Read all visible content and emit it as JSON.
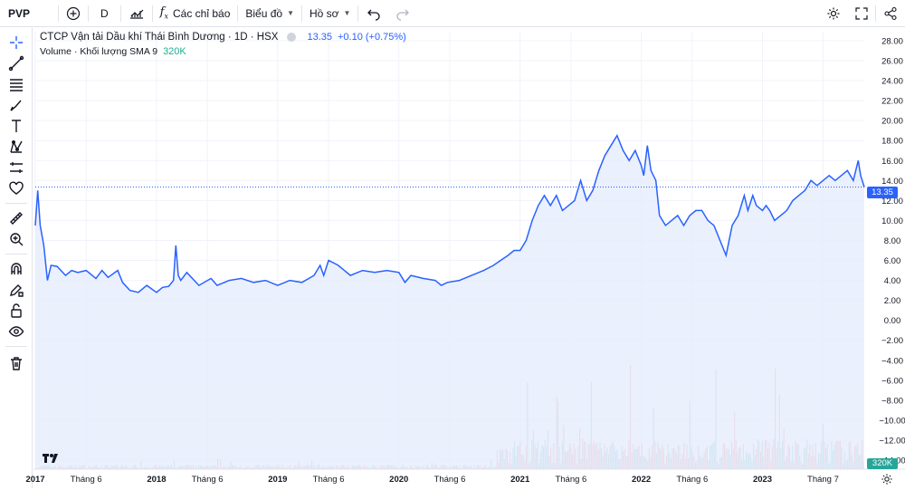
{
  "topbar": {
    "symbol": "PVP",
    "interval": "D",
    "indicators_label": "Các chỉ báo",
    "chart_label": "Biểu đồ",
    "profile_label": "Hồ sơ"
  },
  "legend": {
    "title": "CTCP Vận tải Dầu khí Thái Bình Dương · 1D · HSX",
    "price": "13.35",
    "change": "+0.10 (+0.75%)",
    "volume_label": "Volume · Khối lượng SMA 9",
    "volume_value": "320K"
  },
  "tags": {
    "last_price": "13.35",
    "last_volume": "320K"
  },
  "colors": {
    "line": "#2962ff",
    "area": "#e6ecfd",
    "vol_up": "#26a69a",
    "vol_down": "#ef5350",
    "grid": "#f0f3fa"
  },
  "chart_data": {
    "type": "area",
    "title": "CTCP Vận tải Dầu khí Thái Bình Dương · 1D · HSX",
    "xlabel": "",
    "ylabel": "",
    "ylim": [
      -14,
      28
    ],
    "y_ticks": [
      "28.00",
      "26.00",
      "24.00",
      "22.00",
      "20.00",
      "18.00",
      "16.00",
      "14.00",
      "12.00",
      "10.00",
      "8.00",
      "6.00",
      "4.00",
      "2.00",
      "0.00",
      "−2.00",
      "−4.00",
      "−6.00",
      "−8.00",
      "−10.00",
      "−12.00",
      "−14.00"
    ],
    "x_ticks": [
      "2017",
      "Tháng 6",
      "2018",
      "Tháng 6",
      "2019",
      "Tháng 6",
      "2020",
      "Tháng 6",
      "2021",
      "Tháng 6",
      "2022",
      "Tháng 6",
      "2023",
      "Tháng 7"
    ],
    "x_tick_dates": [
      2017.0,
      2017.42,
      2018.0,
      2018.42,
      2019.0,
      2019.42,
      2020.0,
      2020.42,
      2021.0,
      2021.42,
      2022.0,
      2022.42,
      2023.0,
      2023.5
    ],
    "xlim": [
      2017.0,
      2023.84
    ],
    "series": [
      {
        "values_x": [
          2017.0,
          2017.02,
          2017.04,
          2017.07,
          2017.1,
          2017.13,
          2017.18,
          2017.25,
          2017.3,
          2017.35,
          2017.42,
          2017.5,
          2017.55,
          2017.6,
          2017.68,
          2017.72,
          2017.78,
          2017.85,
          2017.92,
          2018.0,
          2018.05,
          2018.1,
          2018.14,
          2018.16,
          2018.18,
          2018.2,
          2018.25,
          2018.35,
          2018.45,
          2018.5,
          2018.6,
          2018.7,
          2018.8,
          2018.9,
          2019.0,
          2019.1,
          2019.2,
          2019.3,
          2019.35,
          2019.38,
          2019.42,
          2019.5,
          2019.6,
          2019.7,
          2019.8,
          2019.9,
          2020.0,
          2020.05,
          2020.1,
          2020.2,
          2020.3,
          2020.35,
          2020.4,
          2020.5,
          2020.6,
          2020.7,
          2020.78,
          2020.84,
          2020.9,
          2020.95,
          2021.0,
          2021.05,
          2021.1,
          2021.15,
          2021.2,
          2021.25,
          2021.3,
          2021.35,
          2021.4,
          2021.45,
          2021.5,
          2021.55,
          2021.6,
          2021.65,
          2021.7,
          2021.75,
          2021.8,
          2021.85,
          2021.9,
          2021.95,
          2022.0,
          2022.02,
          2022.05,
          2022.08,
          2022.12,
          2022.15,
          2022.2,
          2022.25,
          2022.3,
          2022.35,
          2022.4,
          2022.45,
          2022.5,
          2022.55,
          2022.6,
          2022.65,
          2022.7,
          2022.75,
          2022.8,
          2022.85,
          2022.88,
          2022.92,
          2022.95,
          2023.0,
          2023.03,
          2023.06,
          2023.1,
          2023.15,
          2023.2,
          2023.25,
          2023.3,
          2023.35,
          2023.4,
          2023.45,
          2023.5,
          2023.55,
          2023.6,
          2023.65,
          2023.7,
          2023.75,
          2023.79,
          2023.81,
          2023.84
        ],
        "values": [
          9.5,
          13.0,
          9.5,
          7.5,
          4.0,
          5.5,
          5.4,
          4.5,
          5.0,
          4.8,
          5.0,
          4.2,
          5.0,
          4.3,
          5.0,
          3.8,
          3.0,
          2.8,
          3.5,
          2.8,
          3.3,
          3.4,
          4.0,
          7.5,
          4.5,
          4.0,
          4.8,
          3.5,
          4.2,
          3.5,
          4.0,
          4.2,
          3.8,
          4.0,
          3.5,
          4.0,
          3.8,
          4.5,
          5.5,
          4.5,
          6.0,
          5.5,
          4.5,
          5.0,
          4.8,
          5.0,
          4.8,
          3.8,
          4.5,
          4.2,
          4.0,
          3.5,
          3.8,
          4.0,
          4.5,
          5.0,
          5.5,
          6.0,
          6.5,
          7.0,
          7.0,
          8.0,
          10.0,
          11.5,
          12.5,
          11.5,
          12.5,
          11.0,
          11.5,
          12.0,
          14.0,
          12.0,
          13.0,
          15.0,
          16.5,
          17.5,
          18.5,
          17.0,
          16.0,
          17.0,
          15.5,
          14.5,
          17.5,
          15.0,
          14.0,
          10.5,
          9.5,
          10.0,
          10.5,
          9.5,
          10.5,
          11.0,
          11.0,
          10.0,
          9.5,
          8.0,
          6.5,
          9.5,
          10.5,
          12.5,
          11.0,
          12.5,
          11.5,
          11.0,
          11.5,
          11.0,
          10.0,
          10.5,
          11.0,
          12.0,
          12.5,
          13.0,
          14.0,
          13.5,
          14.0,
          14.5,
          14.0,
          14.5,
          15.0,
          14.0,
          16.0,
          14.5,
          13.35
        ]
      }
    ]
  }
}
